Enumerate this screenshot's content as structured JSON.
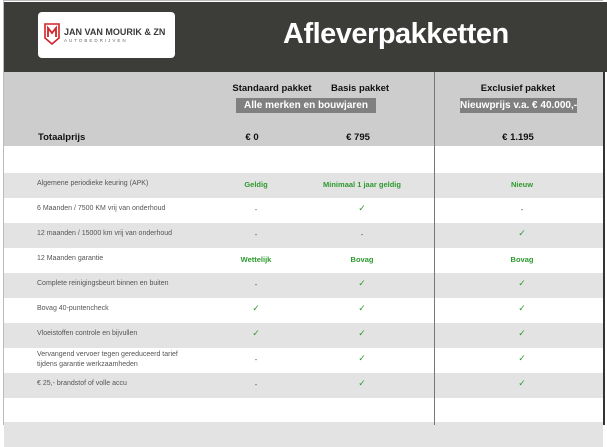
{
  "header": {
    "logo_name": "JAN VAN MOURIK & ZN",
    "logo_sub": "AUTOBEDRIJVEN",
    "title": "Afleverpakketten"
  },
  "columns": [
    {
      "name": "Standaard pakket",
      "price": "€ 0"
    },
    {
      "name": "Basis pakket",
      "price": "€ 795"
    },
    {
      "name": "Exclusief pakket",
      "price": "€ 1.195"
    }
  ],
  "badges": {
    "standard_basis": "Alle merken en bouwjaren",
    "exclusive": "Nieuwprijs v.a. € 40.000,-"
  },
  "total_label": "Totaalprijs",
  "colors": {
    "header": "#3c3c39",
    "accent_green": "#2e9a2e",
    "logo_red": "#d0232a"
  },
  "rows": [
    {
      "label": "Algemene periodieke keuring (APK)",
      "values": [
        "Geldig",
        "Minimaal 1 jaar geldig",
        "Nieuw"
      ]
    },
    {
      "label": "6 Maanden / 7500 KM vrij van onderhoud",
      "values": [
        "-",
        "✓",
        "-"
      ]
    },
    {
      "label": "12 maanden / 15000 km vrij van onderhoud",
      "values": [
        "-",
        "-",
        "✓"
      ]
    },
    {
      "label": "12 Maanden  garantie",
      "values": [
        "Wettelijk",
        "Bovag",
        "Bovag"
      ]
    },
    {
      "label": "Complete reinigingsbeurt binnen en buiten",
      "values": [
        "-",
        "✓",
        "✓"
      ]
    },
    {
      "label": "Bovag 40-puntencheck",
      "values": [
        "✓",
        "✓",
        "✓"
      ]
    },
    {
      "label": "Vloeistoffen controle en bijvullen",
      "values": [
        "✓",
        "✓",
        "✓"
      ]
    },
    {
      "label": "Vervangend vervoer tegen gereduceerd tarief tijdens garantie werkzaamheden",
      "values": [
        "-",
        "✓",
        "✓"
      ]
    },
    {
      "label": "€ 25,- brandstof of  volle accu",
      "values": [
        "-",
        "✓",
        "✓"
      ]
    }
  ]
}
